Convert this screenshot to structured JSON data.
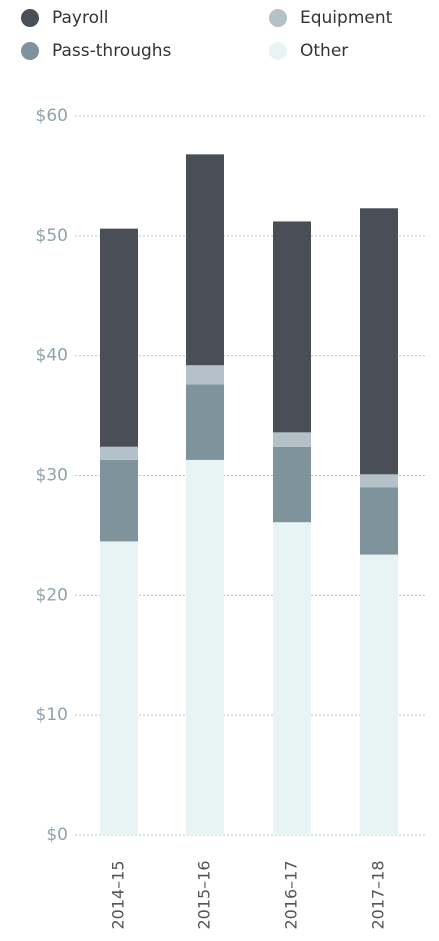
{
  "chart_data": {
    "type": "stacked_bar",
    "categories": [
      "2014–15",
      "2015–16",
      "2016–17",
      "2017–18"
    ],
    "series": [
      {
        "name": "Other",
        "color": "#e8f3f3",
        "values": [
          24.5,
          31.3,
          26.1,
          23.4
        ]
      },
      {
        "name": "Pass-throughs",
        "color": "#7f939c",
        "values": [
          6.8,
          6.3,
          6.3,
          5.6
        ]
      },
      {
        "name": "Equipment",
        "color": "#b5c1c8",
        "values": [
          1.1,
          1.6,
          1.2,
          1.1
        ]
      },
      {
        "name": "Payroll",
        "color": "#4a4f57",
        "values": [
          18.2,
          17.6,
          17.6,
          22.2
        ]
      }
    ],
    "ylim": [
      0,
      60
    ],
    "yticks": [
      {
        "value": 0,
        "label": "$0"
      },
      {
        "value": 10,
        "label": "$10"
      },
      {
        "value": 20,
        "label": "$20"
      },
      {
        "value": 30,
        "label": "$30"
      },
      {
        "value": 40,
        "label": "$40"
      },
      {
        "value": 50,
        "label": "$50"
      },
      {
        "value": 60,
        "label": "$60"
      }
    ],
    "grid": true
  }
}
